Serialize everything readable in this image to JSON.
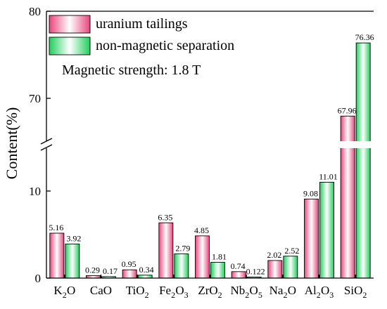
{
  "chart_data": {
    "type": "bar",
    "ylabel": "Content(%)",
    "y_axis_segments": [
      {
        "range": [
          0,
          15
        ],
        "ticks": [
          "0",
          "10"
        ]
      },
      {
        "range": [
          65,
          80
        ],
        "ticks": [
          "70",
          "80"
        ]
      }
    ],
    "categories": [
      {
        "base": "K",
        "sub": "2",
        "rest": "O"
      },
      {
        "base": "CaO",
        "sub": "",
        "rest": ""
      },
      {
        "base": "TiO",
        "sub": "2",
        "rest": ""
      },
      {
        "base": "Fe",
        "sub": "2",
        "rest": "O",
        "sub2": "3"
      },
      {
        "base": "ZrO",
        "sub": "2",
        "rest": ""
      },
      {
        "base": "Nb",
        "sub": "2",
        "rest": "O",
        "sub2": "5"
      },
      {
        "base": "Na",
        "sub": "2",
        "rest": "O"
      },
      {
        "base": "Al",
        "sub": "2",
        "rest": "O",
        "sub2": "3"
      },
      {
        "base": "SiO",
        "sub": "2",
        "rest": ""
      }
    ],
    "series": [
      {
        "name": "uranium tailings",
        "values": [
          5.16,
          0.29,
          0.95,
          6.35,
          4.85,
          0.74,
          2.02,
          9.08,
          67.96
        ],
        "labels": [
          "5.16",
          "0.29",
          "0.95",
          "6.35",
          "4.85",
          "0.74",
          "2.02",
          "9.08",
          "67.96"
        ],
        "color": "#e8457c"
      },
      {
        "name": "non-magnetic separation",
        "values": [
          3.92,
          0.17,
          0.34,
          2.79,
          1.81,
          0.122,
          2.52,
          11.01,
          76.36
        ],
        "labels": [
          "3.92",
          "0.17",
          "0.34",
          "2.79",
          "1.81",
          "0.122",
          "2.52",
          "11.01",
          "76.36"
        ],
        "color": "#1fcf5c"
      }
    ],
    "annotation": "Magnetic strength: 1.8 T",
    "legend_position": "top-left"
  }
}
